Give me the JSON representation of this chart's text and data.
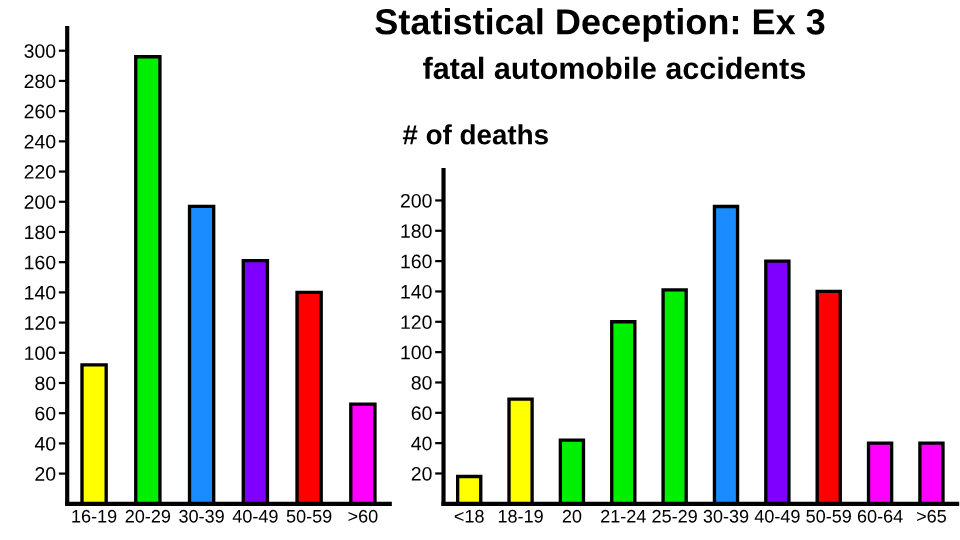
{
  "chart_data": [
    {
      "type": "bar",
      "categories": [
        "16-19",
        "20-29",
        "30-39",
        "40-49",
        "50-59",
        ">60"
      ],
      "values": [
        92,
        296,
        197,
        161,
        140,
        66
      ],
      "colors": [
        "#ffff00",
        "#00ee00",
        "#1a8cff",
        "#7f00ff",
        "#ff0000",
        "#ff00ff"
      ],
      "ylim": [
        0,
        315
      ],
      "yticks": [
        20,
        40,
        60,
        80,
        100,
        120,
        140,
        160,
        180,
        200,
        220,
        240,
        260,
        280,
        300
      ],
      "grid": false,
      "legend": false
    },
    {
      "type": "bar",
      "title": "Statistical Deception: Ex 3",
      "subtitle": "fatal automobile accidents",
      "ylabel": "# of deaths",
      "categories": [
        "<18",
        "18-19",
        "20",
        "21-24",
        "25-29",
        "30-39",
        "40-49",
        "50-59",
        "60-64",
        ">65"
      ],
      "values": [
        18,
        69,
        42,
        120,
        141,
        196,
        160,
        140,
        40,
        40
      ],
      "colors": [
        "#ffff00",
        "#ffff00",
        "#00ee00",
        "#00ee00",
        "#00ee00",
        "#1a8cff",
        "#7f00ff",
        "#ff0000",
        "#ff00ff",
        "#ff00ff"
      ],
      "ylim": [
        0,
        220
      ],
      "yticks": [
        20,
        40,
        60,
        80,
        100,
        120,
        140,
        160,
        180,
        200
      ],
      "grid": false,
      "legend": false
    }
  ]
}
